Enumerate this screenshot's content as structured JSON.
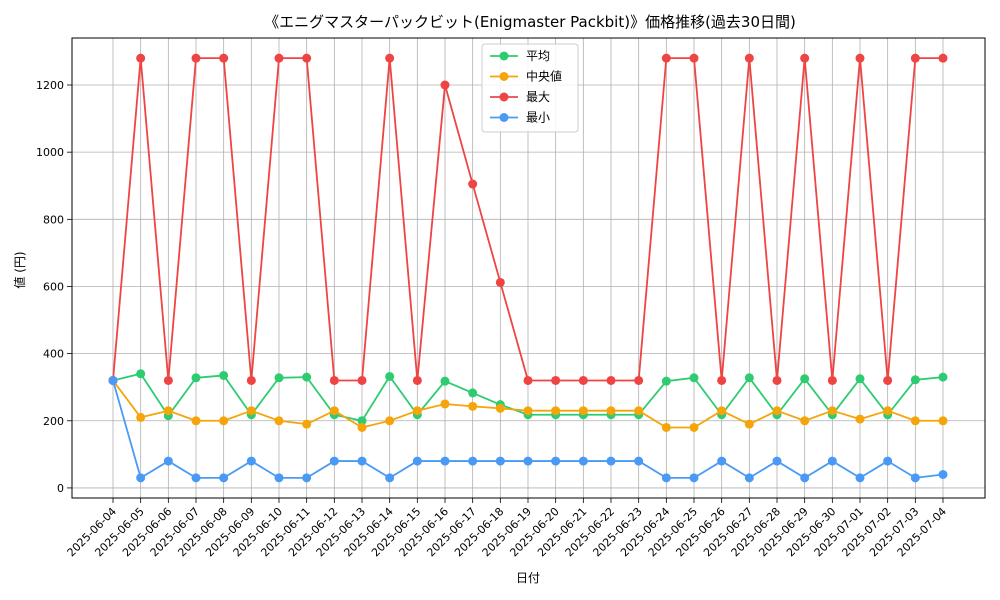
{
  "chart_data": {
    "type": "line",
    "title": "《エニグマスターパックビット(Enigmaster Packbit)》価格推移(過去30日間)",
    "xlabel": "日付",
    "ylabel": "値 (円)",
    "ylim": [
      -30,
      1340
    ],
    "yticks": [
      0,
      200,
      400,
      600,
      800,
      1000,
      1200
    ],
    "grid": true,
    "legend_position": "top-center",
    "x": [
      "2025-06-04",
      "2025-06-05",
      "2025-06-06",
      "2025-06-07",
      "2025-06-08",
      "2025-06-09",
      "2025-06-10",
      "2025-06-11",
      "2025-06-12",
      "2025-06-13",
      "2025-06-14",
      "2025-06-15",
      "2025-06-16",
      "2025-06-17",
      "2025-06-18",
      "2025-06-19",
      "2025-06-20",
      "2025-06-21",
      "2025-06-22",
      "2025-06-23",
      "2025-06-24",
      "2025-06-25",
      "2025-06-26",
      "2025-06-27",
      "2025-06-28",
      "2025-06-29",
      "2025-06-30",
      "2025-07-01",
      "2025-07-02",
      "2025-07-03",
      "2025-07-04"
    ],
    "series": [
      {
        "name": "平均",
        "color": "#2ecc71",
        "values": [
          320,
          340,
          215,
          328,
          335,
          218,
          328,
          330,
          218,
          200,
          332,
          218,
          318,
          283,
          248,
          218,
          218,
          218,
          218,
          218,
          318,
          328,
          218,
          328,
          218,
          325,
          218,
          325,
          218,
          322,
          330
        ]
      },
      {
        "name": "中央値",
        "color": "#f5a50a",
        "values": [
          320,
          210,
          230,
          200,
          200,
          230,
          200,
          190,
          230,
          180,
          200,
          230,
          250,
          243,
          237,
          230,
          230,
          230,
          230,
          230,
          180,
          180,
          230,
          190,
          230,
          200,
          230,
          205,
          230,
          200,
          200
        ]
      },
      {
        "name": "最大",
        "color": "#ef4444",
        "values": [
          320,
          1280,
          320,
          1280,
          1280,
          320,
          1280,
          1280,
          320,
          320,
          1280,
          320,
          1200,
          905,
          612,
          320,
          320,
          320,
          320,
          320,
          1280,
          1280,
          320,
          1280,
          320,
          1280,
          320,
          1280,
          320,
          1280,
          1280
        ]
      },
      {
        "name": "最小",
        "color": "#4a9af5",
        "values": [
          320,
          30,
          80,
          30,
          30,
          80,
          30,
          30,
          80,
          80,
          30,
          80,
          80,
          80,
          80,
          80,
          80,
          80,
          80,
          80,
          30,
          30,
          80,
          30,
          80,
          30,
          80,
          30,
          80,
          30,
          40
        ]
      }
    ]
  }
}
